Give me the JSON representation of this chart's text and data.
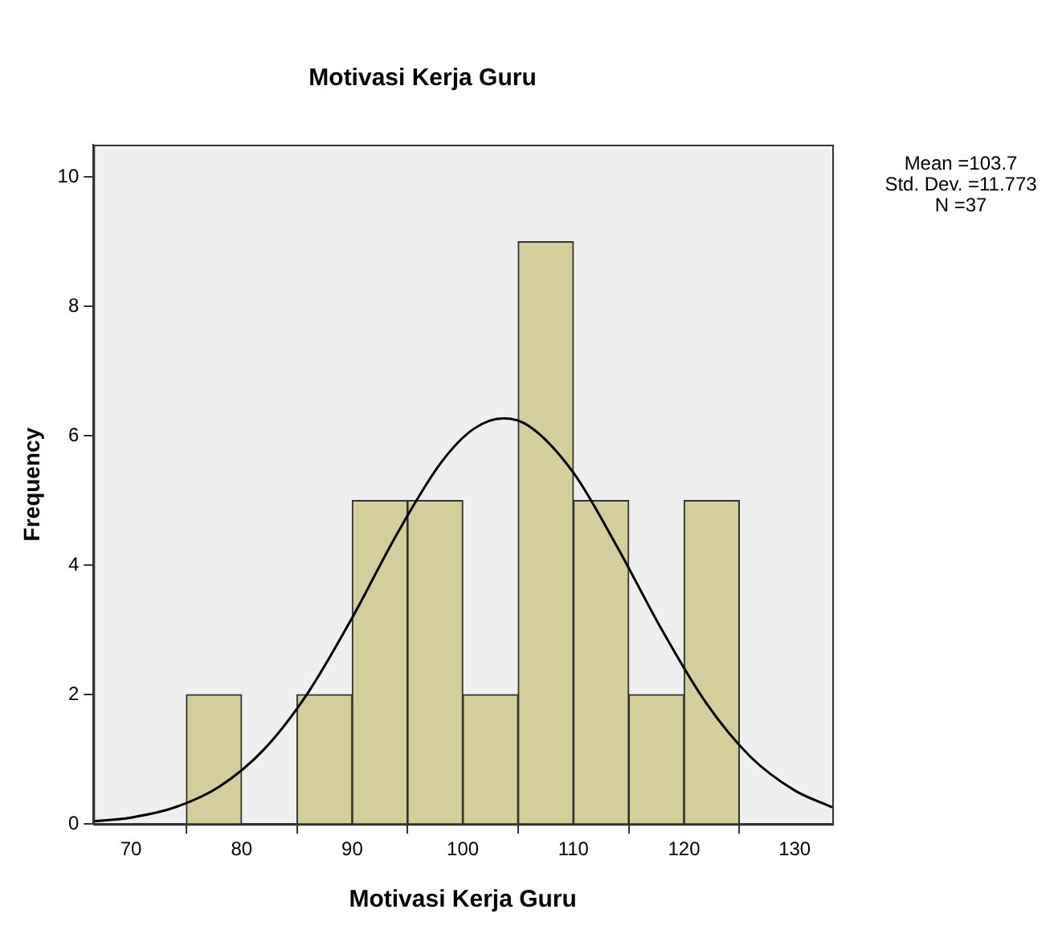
{
  "chart_data": {
    "type": "histogram",
    "title": "Motivasi Kerja Guru",
    "xlabel": "Motivasi Kerja Guru",
    "ylabel": "Frequency",
    "bins": [
      75,
      80,
      85,
      90,
      95,
      100,
      105,
      110,
      115,
      120,
      125
    ],
    "values": [
      2,
      0,
      2,
      5,
      5,
      2,
      9,
      5,
      2,
      5
    ],
    "color": "#d3ce9a",
    "xlim": [
      66.6,
      133.4
    ],
    "xticks": [
      70,
      80,
      90,
      100,
      110,
      120,
      130
    ],
    "ylim": [
      0,
      10.5
    ],
    "yticks": [
      0,
      2,
      4,
      6,
      8,
      10
    ],
    "grid": false,
    "legend": false,
    "annotations": [
      "Mean =103.7",
      "Std. Dev. =11.773",
      "N =37"
    ],
    "series": [
      {
        "type": "line",
        "color": "#000000",
        "x": [
          66.6,
          70,
          74,
          78,
          82,
          86,
          90,
          94,
          98,
          101,
          103.7,
          106,
          110,
          114,
          118,
          122,
          126,
          130,
          133.4
        ],
        "values": [
          0.04,
          0.1,
          0.26,
          0.58,
          1.15,
          2.03,
          3.19,
          4.47,
          5.58,
          6.11,
          6.27,
          6.15,
          5.43,
          4.27,
          3.0,
          1.87,
          1.04,
          0.52,
          0.26
        ]
      }
    ]
  }
}
